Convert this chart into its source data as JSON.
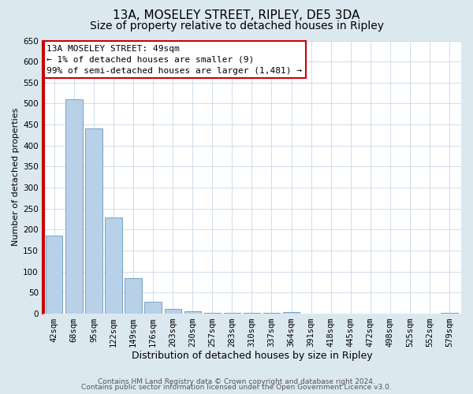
{
  "title": "13A, MOSELEY STREET, RIPLEY, DE5 3DA",
  "subtitle": "Size of property relative to detached houses in Ripley",
  "xlabel": "Distribution of detached houses by size in Ripley",
  "ylabel": "Number of detached properties",
  "footer_line1": "Contains HM Land Registry data © Crown copyright and database right 2024.",
  "footer_line2": "Contains public sector information licensed under the Open Government Licence v3.0.",
  "annotation_line1": "13A MOSELEY STREET: 49sqm",
  "annotation_line2": "← 1% of detached houses are smaller (9)",
  "annotation_line3": "99% of semi-detached houses are larger (1,481) →",
  "bin_labels": [
    "42sqm",
    "68sqm",
    "95sqm",
    "122sqm",
    "149sqm",
    "176sqm",
    "203sqm",
    "230sqm",
    "257sqm",
    "283sqm",
    "310sqm",
    "337sqm",
    "364sqm",
    "391sqm",
    "418sqm",
    "445sqm",
    "472sqm",
    "498sqm",
    "525sqm",
    "552sqm",
    "579sqm"
  ],
  "bar_values": [
    185,
    510,
    440,
    228,
    85,
    28,
    12,
    5,
    2,
    1,
    1,
    1,
    3,
    0,
    0,
    0,
    0,
    0,
    0,
    0,
    1
  ],
  "bar_color": "#b8d0e8",
  "bar_edge_color": "#6699bb",
  "highlight_color": "#cc0000",
  "annotation_box_edge_color": "#cc0000",
  "ylim": [
    0,
    650
  ],
  "yticks": [
    0,
    50,
    100,
    150,
    200,
    250,
    300,
    350,
    400,
    450,
    500,
    550,
    600,
    650
  ],
  "grid_color": "#c8d8e8",
  "bg_color": "#dce8f0",
  "plot_bg_color": "#ffffff",
  "title_fontsize": 11,
  "subtitle_fontsize": 10,
  "xlabel_fontsize": 9,
  "ylabel_fontsize": 8,
  "tick_fontsize": 7.5,
  "annot_fontsize": 8,
  "footer_fontsize": 6.5
}
